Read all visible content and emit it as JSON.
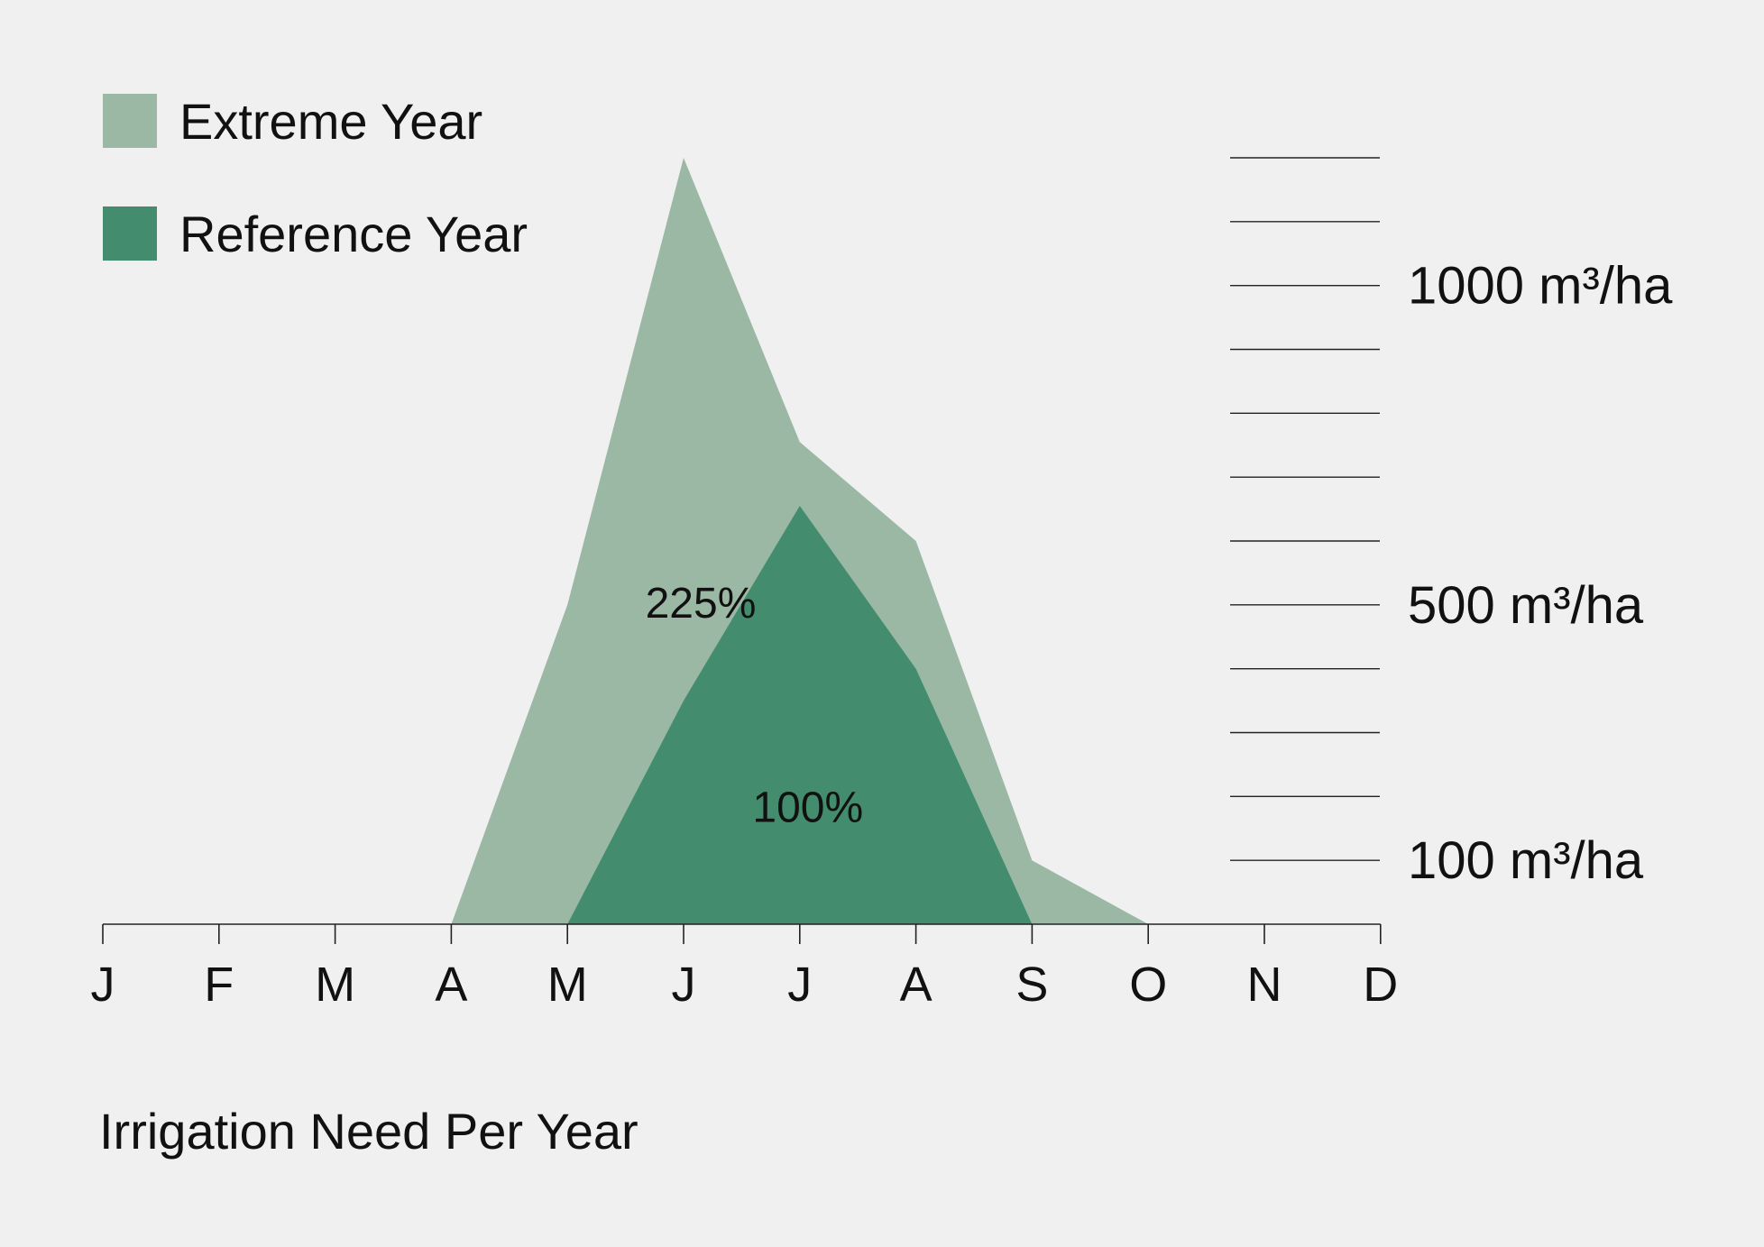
{
  "chart_data": {
    "type": "area",
    "title": "",
    "xlabel": "",
    "ylabel": "",
    "categories": [
      "J",
      "F",
      "M",
      "A",
      "M",
      "J",
      "J",
      "A",
      "S",
      "O",
      "N",
      "D"
    ],
    "ylim": [
      0,
      1200
    ],
    "series": [
      {
        "name": "Extreme Year",
        "color": "#9bb8a5",
        "values": [
          0,
          0,
          0,
          0,
          500,
          1200,
          755,
          600,
          100,
          0,
          0,
          0
        ],
        "label": "225%"
      },
      {
        "name": "Reference Year",
        "color": "#438d6e",
        "values": [
          0,
          0,
          0,
          0,
          0,
          350,
          655,
          400,
          0,
          0,
          0,
          0
        ],
        "label": "100%"
      }
    ],
    "y_ticks": [
      100,
      200,
      300,
      400,
      500,
      600,
      700,
      800,
      900,
      1000,
      1100,
      1200
    ],
    "y_tick_labels": [
      {
        "value": 100,
        "text": "100 m³/ha"
      },
      {
        "value": 500,
        "text": "500 m³/ha"
      },
      {
        "value": 1000,
        "text": "1000 m³/ha"
      }
    ],
    "legend_position": "top-left",
    "caption": "Irrigation Need Per Year"
  }
}
